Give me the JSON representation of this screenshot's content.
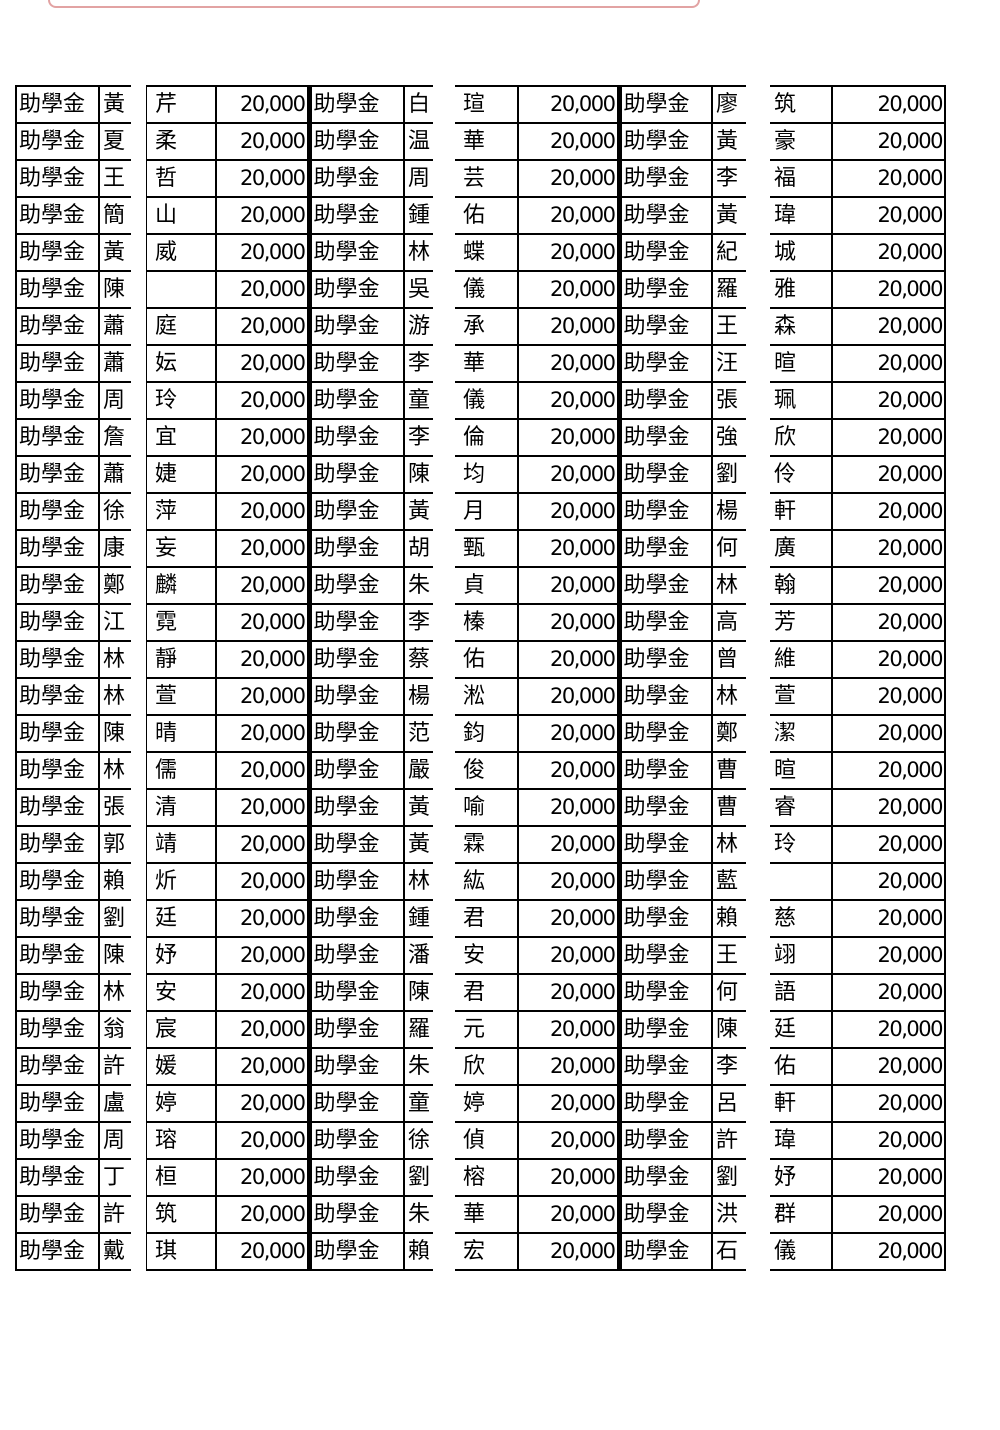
{
  "label": "助學金",
  "groups": [
    {
      "rows": [
        [
          "黃",
          "芹"
        ],
        [
          "夏",
          "柔"
        ],
        [
          "王",
          "哲"
        ],
        [
          "簡",
          "山"
        ],
        [
          "黃",
          "威"
        ],
        [
          "陳",
          ""
        ],
        [
          "蕭",
          "庭"
        ],
        [
          "蕭",
          "妘"
        ],
        [
          "周",
          "玲"
        ],
        [
          "詹",
          "宜"
        ],
        [
          "蕭",
          "婕"
        ],
        [
          "徐",
          "萍"
        ],
        [
          "康",
          "妄"
        ],
        [
          "鄭",
          "麟"
        ],
        [
          "江",
          "霓"
        ],
        [
          "林",
          "靜"
        ],
        [
          "林",
          "萱"
        ],
        [
          "陳",
          "晴"
        ],
        [
          "林",
          "儒"
        ],
        [
          "張",
          "清"
        ],
        [
          "郭",
          "靖"
        ],
        [
          "賴",
          "炘"
        ],
        [
          "劉",
          "廷"
        ],
        [
          "陳",
          "妤"
        ],
        [
          "林",
          "安"
        ],
        [
          "翁",
          "宸"
        ],
        [
          "許",
          "媛"
        ],
        [
          "盧",
          "婷"
        ],
        [
          "周",
          "瑢"
        ],
        [
          "丁",
          "桓"
        ],
        [
          "許",
          "筑"
        ],
        [
          "戴",
          "琪"
        ]
      ]
    },
    {
      "rows": [
        [
          "白",
          "瑄"
        ],
        [
          "温",
          "華"
        ],
        [
          "周",
          "芸"
        ],
        [
          "鍾",
          "佑"
        ],
        [
          "林",
          "蝶"
        ],
        [
          "吳",
          "儀"
        ],
        [
          "游",
          "承"
        ],
        [
          "李",
          "華"
        ],
        [
          "童",
          "儀"
        ],
        [
          "李",
          "倫"
        ],
        [
          "陳",
          "均"
        ],
        [
          "黃",
          "月"
        ],
        [
          "胡",
          "甄"
        ],
        [
          "朱",
          "貞"
        ],
        [
          "李",
          "榛"
        ],
        [
          "蔡",
          "佑"
        ],
        [
          "楊",
          "淞"
        ],
        [
          "范",
          "鈞"
        ],
        [
          "嚴",
          "俊"
        ],
        [
          "黃",
          "喻"
        ],
        [
          "黃",
          "霖"
        ],
        [
          "林",
          "紘"
        ],
        [
          "鍾",
          "君"
        ],
        [
          "潘",
          "安"
        ],
        [
          "陳",
          "君"
        ],
        [
          "羅",
          "元"
        ],
        [
          "朱",
          "欣"
        ],
        [
          "童",
          "婷"
        ],
        [
          "徐",
          "偵"
        ],
        [
          "劉",
          "榕"
        ],
        [
          "朱",
          "華"
        ],
        [
          "賴",
          "宏"
        ]
      ]
    },
    {
      "rows": [
        [
          "廖",
          "筑"
        ],
        [
          "黃",
          "豪"
        ],
        [
          "李",
          "福"
        ],
        [
          "黃",
          "瑋"
        ],
        [
          "紀",
          "城"
        ],
        [
          "羅",
          "雅"
        ],
        [
          "王",
          "森"
        ],
        [
          "汪",
          "暄"
        ],
        [
          "張",
          "珮"
        ],
        [
          "強",
          "欣"
        ],
        [
          "劉",
          "伶"
        ],
        [
          "楊",
          "軒"
        ],
        [
          "何",
          "廣"
        ],
        [
          "林",
          "翰"
        ],
        [
          "高",
          "芳"
        ],
        [
          "曾",
          "維"
        ],
        [
          "林",
          "萱"
        ],
        [
          "鄭",
          "潔"
        ],
        [
          "曹",
          "暄"
        ],
        [
          "曹",
          "睿"
        ],
        [
          "林",
          "玲"
        ],
        [
          "藍",
          ""
        ],
        [
          "賴",
          "慈"
        ],
        [
          "王",
          "翊"
        ],
        [
          "何",
          "語"
        ],
        [
          "陳",
          "廷"
        ],
        [
          "李",
          "佑"
        ],
        [
          "呂",
          "軒"
        ],
        [
          "許",
          "瑋"
        ],
        [
          "劉",
          "妤"
        ],
        [
          "洪",
          "群"
        ],
        [
          "石",
          "儀"
        ]
      ]
    }
  ],
  "amount": "20,000"
}
